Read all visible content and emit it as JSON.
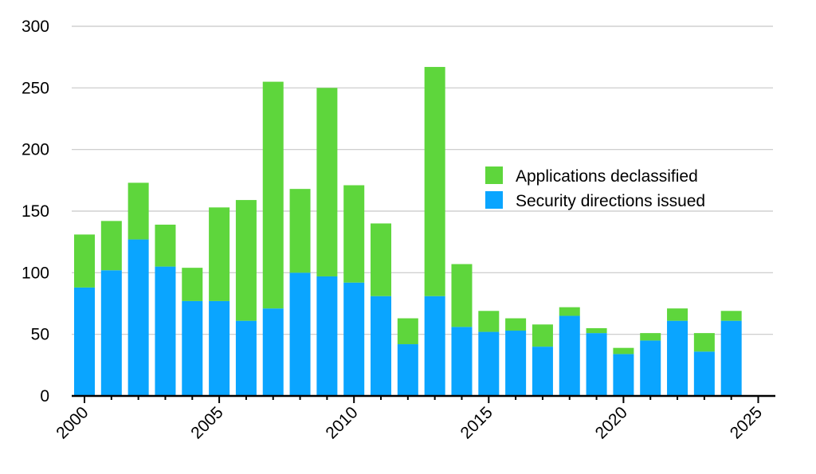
{
  "chart_data": {
    "type": "bar",
    "stacked": true,
    "x": [
      2000,
      2001,
      2002,
      2003,
      2004,
      2005,
      2006,
      2007,
      2008,
      2009,
      2010,
      2011,
      2012,
      2013,
      2014,
      2015,
      2016,
      2017,
      2018,
      2019,
      2020,
      2021,
      2022,
      2023,
      2024
    ],
    "series": [
      {
        "name": "Security directions issued",
        "color": "#0aa5ff",
        "values": [
          88,
          102,
          127,
          105,
          77,
          77,
          61,
          71,
          100,
          97,
          92,
          81,
          42,
          81,
          56,
          52,
          53,
          40,
          65,
          51,
          34,
          45,
          61,
          36,
          61
        ]
      },
      {
        "name": "Applications declassified",
        "color": "#5ed63c",
        "values": [
          43,
          40,
          46,
          34,
          27,
          76,
          98,
          184,
          68,
          153,
          79,
          59,
          21,
          186,
          51,
          17,
          10,
          18,
          7,
          4,
          5,
          6,
          10,
          15,
          8
        ]
      }
    ],
    "title": "",
    "xlabel": "",
    "ylabel": "",
    "xlim": [
      2000,
      2025
    ],
    "ylim": [
      0,
      300
    ],
    "y_ticks": [
      0,
      50,
      100,
      150,
      200,
      250,
      300
    ],
    "x_ticks": [
      2000,
      2005,
      2010,
      2015,
      2020,
      2025
    ],
    "grid": "horizontal",
    "legend": {
      "position": "right",
      "entries": [
        "Applications declassified",
        "Security directions issued"
      ]
    }
  }
}
